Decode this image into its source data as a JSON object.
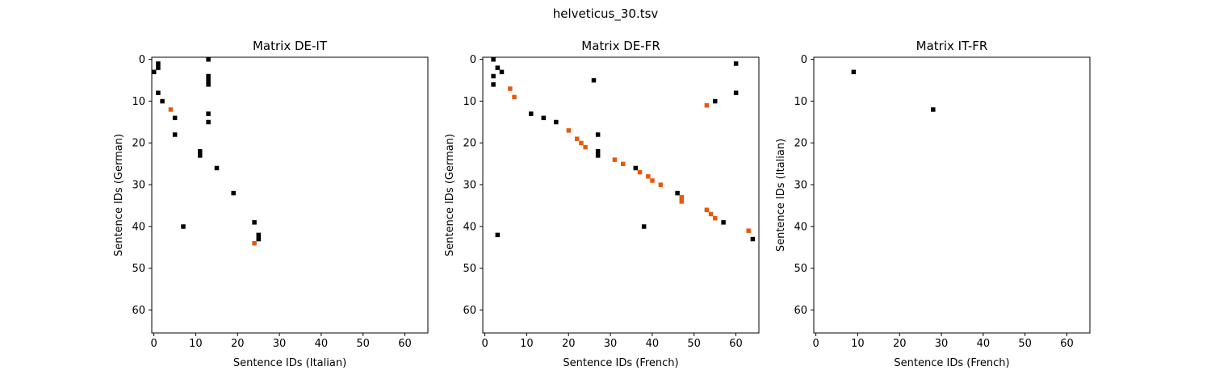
{
  "figure": {
    "title": "helveticus_30.tsv"
  },
  "chart_data": [
    {
      "type": "heatmap",
      "title": "Matrix DE-IT",
      "xlabel": "Sentence IDs (Italian)",
      "ylabel": "Sentence IDs (German)",
      "xlim": [
        -0.5,
        65.5
      ],
      "ylim": [
        65.5,
        -0.5
      ],
      "xticks": [
        0,
        10,
        20,
        30,
        40,
        50,
        60
      ],
      "yticks": [
        0,
        10,
        20,
        30,
        40,
        50,
        60
      ],
      "grid": false,
      "colors": {
        "black": "#000000",
        "orange": "#e8590c"
      },
      "cells_black": [
        [
          13,
          0
        ],
        [
          1,
          1
        ],
        [
          1,
          2
        ],
        [
          0,
          3
        ],
        [
          13,
          4
        ],
        [
          13,
          5
        ],
        [
          13,
          6
        ],
        [
          1,
          8
        ],
        [
          2,
          10
        ],
        [
          13,
          13
        ],
        [
          5,
          14
        ],
        [
          13,
          15
        ],
        [
          5,
          18
        ],
        [
          11,
          22
        ],
        [
          11,
          23
        ],
        [
          15,
          26
        ],
        [
          19,
          32
        ],
        [
          24,
          39
        ],
        [
          7,
          40
        ],
        [
          25,
          42
        ],
        [
          25,
          43
        ]
      ],
      "cells_orange": [
        [
          4,
          12
        ],
        [
          24,
          44
        ]
      ]
    },
    {
      "type": "heatmap",
      "title": "Matrix DE-FR",
      "xlabel": "Sentence IDs (French)",
      "ylabel": "Sentence IDs (German)",
      "xlim": [
        -0.5,
        65.5
      ],
      "ylim": [
        65.5,
        -0.5
      ],
      "xticks": [
        0,
        10,
        20,
        30,
        40,
        50,
        60
      ],
      "yticks": [
        0,
        10,
        20,
        30,
        40,
        50,
        60
      ],
      "grid": false,
      "colors": {
        "black": "#000000",
        "orange": "#e8590c"
      },
      "cells_black": [
        [
          2,
          0
        ],
        [
          60,
          1
        ],
        [
          3,
          2
        ],
        [
          4,
          3
        ],
        [
          2,
          4
        ],
        [
          26,
          5
        ],
        [
          2,
          6
        ],
        [
          60,
          8
        ],
        [
          55,
          10
        ],
        [
          11,
          13
        ],
        [
          14,
          14
        ],
        [
          17,
          15
        ],
        [
          27,
          18
        ],
        [
          27,
          22
        ],
        [
          27,
          23
        ],
        [
          36,
          26
        ],
        [
          46,
          32
        ],
        [
          57,
          39
        ],
        [
          38,
          40
        ],
        [
          3,
          42
        ],
        [
          64,
          43
        ]
      ],
      "cells_orange": [
        [
          6,
          7
        ],
        [
          7,
          9
        ],
        [
          53,
          11
        ],
        [
          20,
          17
        ],
        [
          22,
          19
        ],
        [
          23,
          20
        ],
        [
          24,
          21
        ],
        [
          31,
          24
        ],
        [
          33,
          25
        ],
        [
          37,
          27
        ],
        [
          39,
          28
        ],
        [
          40,
          29
        ],
        [
          42,
          30
        ],
        [
          47,
          33
        ],
        [
          47,
          34
        ],
        [
          53,
          36
        ],
        [
          54,
          37
        ],
        [
          55,
          38
        ],
        [
          63,
          41
        ]
      ]
    },
    {
      "type": "heatmap",
      "title": "Matrix IT-FR",
      "xlabel": "Sentence IDs (French)",
      "ylabel": "Sentence IDs (Italian)",
      "xlim": [
        -0.5,
        65.5
      ],
      "ylim": [
        65.5,
        -0.5
      ],
      "xticks": [
        0,
        10,
        20,
        30,
        40,
        50,
        60
      ],
      "yticks": [
        0,
        10,
        20,
        30,
        40,
        50,
        60
      ],
      "grid": false,
      "colors": {
        "black": "#000000",
        "orange": "#e8590c"
      },
      "cells_black": [
        [
          9,
          3
        ],
        [
          28,
          12
        ]
      ],
      "cells_orange": []
    }
  ]
}
